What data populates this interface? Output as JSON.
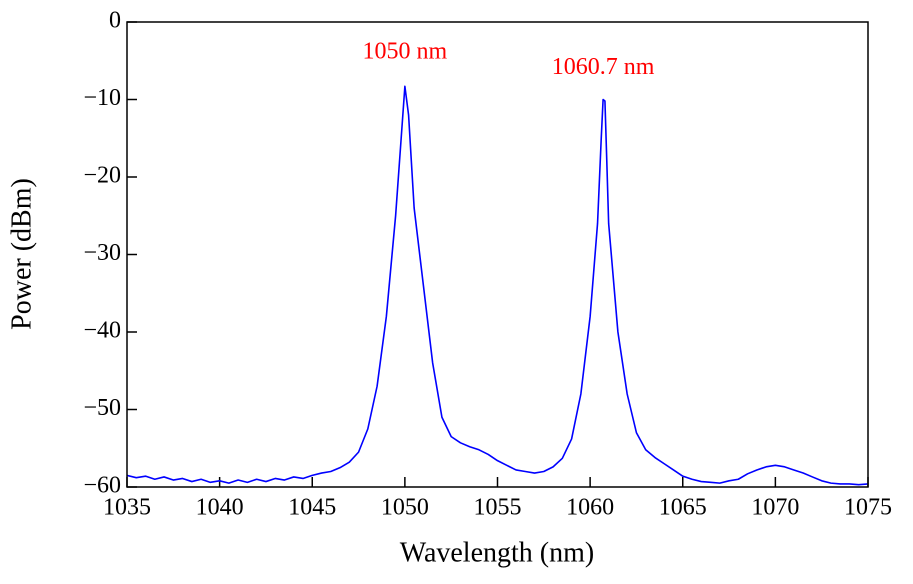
{
  "chart_data": {
    "type": "line",
    "xlabel": "Wavelength (nm)",
    "ylabel": "Power (dBm)",
    "x": [
      1035,
      1035.5,
      1036,
      1036.5,
      1037,
      1037.5,
      1038,
      1038.5,
      1039,
      1039.5,
      1040,
      1040.5,
      1041,
      1041.5,
      1042,
      1042.5,
      1043,
      1043.5,
      1044,
      1044.5,
      1045,
      1045.5,
      1046,
      1046.5,
      1047,
      1047.5,
      1048,
      1048.5,
      1049,
      1049.5,
      1049.8,
      1050,
      1050.2,
      1050.5,
      1051,
      1051.5,
      1052,
      1052.5,
      1053,
      1053.5,
      1054,
      1054.5,
      1055,
      1055.5,
      1056,
      1056.5,
      1057,
      1057.5,
      1058,
      1058.5,
      1059,
      1059.5,
      1060,
      1060.4,
      1060.6,
      1060.7,
      1060.8,
      1060.9,
      1061,
      1061.5,
      1062,
      1062.5,
      1063,
      1063.5,
      1064,
      1064.5,
      1065,
      1065.5,
      1066,
      1066.5,
      1067,
      1067.5,
      1068,
      1068.5,
      1069,
      1069.5,
      1070,
      1070.5,
      1071,
      1071.5,
      1072,
      1072.5,
      1073,
      1073.5,
      1074,
      1074.5,
      1075
    ],
    "series": [
      {
        "name": "Spectrum",
        "color": "#0000ff",
        "values": [
          -58.5,
          -58.8,
          -58.6,
          -59.0,
          -58.7,
          -59.1,
          -58.9,
          -59.3,
          -59.0,
          -59.4,
          -59.2,
          -59.5,
          -59.1,
          -59.4,
          -59.0,
          -59.3,
          -58.9,
          -59.1,
          -58.7,
          -58.9,
          -58.5,
          -58.2,
          -58.0,
          -57.5,
          -56.8,
          -55.5,
          -52.5,
          -47.0,
          -38.0,
          -25.0,
          -15.0,
          -8.3,
          -12.0,
          -24.0,
          -34.0,
          -44.0,
          -51.0,
          -53.5,
          -54.3,
          -54.8,
          -55.2,
          -55.8,
          -56.6,
          -57.2,
          -57.8,
          -58.0,
          -58.2,
          -58.0,
          -57.4,
          -56.3,
          -53.8,
          -48.0,
          -38.0,
          -26.0,
          -15.0,
          -10.0,
          -10.2,
          -18.0,
          -26.0,
          -40.0,
          -48.0,
          -53.0,
          -55.2,
          -56.2,
          -57.0,
          -57.8,
          -58.6,
          -59.0,
          -59.3,
          -59.4,
          -59.5,
          -59.2,
          -59.0,
          -58.3,
          -57.8,
          -57.4,
          -57.2,
          -57.4,
          -57.8,
          -58.2,
          -58.7,
          -59.2,
          -59.5,
          -59.6,
          -59.6,
          -59.7,
          -59.6
        ]
      }
    ],
    "annotations": [
      {
        "text": "1050 nm",
        "x": 1050,
        "y": -4,
        "color": "#ff0000"
      },
      {
        "text": "1060.7 nm",
        "x": 1060.7,
        "y": -6,
        "color": "#ff0000"
      }
    ],
    "xlim": [
      1035,
      1075
    ],
    "xticks": [
      1035,
      1040,
      1045,
      1050,
      1055,
      1060,
      1065,
      1070,
      1075
    ],
    "ylim": [
      -60,
      0
    ],
    "yticks": [
      {
        "value": -60,
        "label": "−60"
      },
      {
        "value": -50,
        "label": "−50"
      },
      {
        "value": -40,
        "label": "−40"
      },
      {
        "value": -30,
        "label": "−30"
      },
      {
        "value": -20,
        "label": "−20"
      },
      {
        "value": -10,
        "label": "−10"
      },
      0
    ],
    "grid": false
  }
}
